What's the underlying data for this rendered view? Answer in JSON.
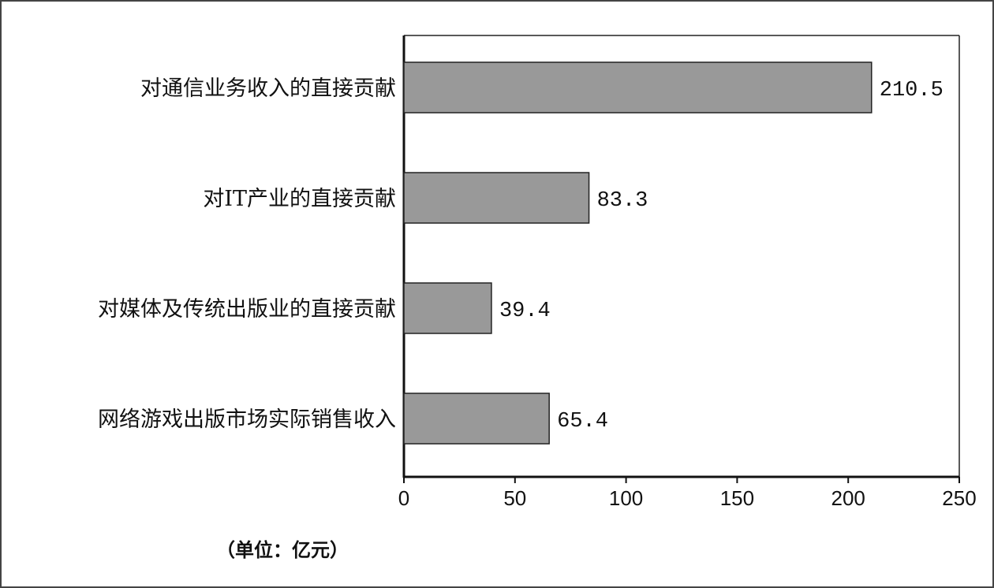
{
  "chart_data": {
    "type": "bar",
    "orientation": "horizontal",
    "categories": [
      "对通信业务收入的直接贡献",
      "对IT产业的直接贡献",
      "对媒体及传统出版业的直接贡献",
      "网络游戏出版市场实际销售收入"
    ],
    "values": [
      210.5,
      83.3,
      39.4,
      65.4
    ],
    "value_labels": [
      "210.5",
      "83.3",
      "39.4",
      "65.4"
    ],
    "xlim": [
      0,
      250
    ],
    "xticks": [
      "0",
      "50",
      "100",
      "150",
      "200",
      "250"
    ],
    "bar_color": "#999999",
    "unit_note": "（单位：亿元）",
    "grid": false
  }
}
